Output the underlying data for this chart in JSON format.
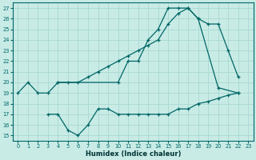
{
  "xlabel": "Humidex (Indice chaleur)",
  "bg_color": "#c8ebe6",
  "grid_color": "#a8d8d0",
  "line_color": "#006666",
  "xlim": [
    -0.5,
    23.5
  ],
  "ylim": [
    14.5,
    27.5
  ],
  "yticks": [
    15,
    16,
    17,
    18,
    19,
    20,
    21,
    22,
    23,
    24,
    25,
    26,
    27
  ],
  "xticks": [
    0,
    1,
    2,
    3,
    4,
    5,
    6,
    7,
    8,
    9,
    10,
    11,
    12,
    13,
    14,
    15,
    16,
    17,
    18,
    19,
    20,
    21,
    22,
    23
  ],
  "line1_x": [
    0,
    1,
    2,
    3,
    4,
    10,
    11,
    12,
    13,
    14,
    15,
    16,
    17,
    18,
    20,
    22
  ],
  "line1_y": [
    19,
    20,
    19,
    19,
    20,
    20,
    22,
    22,
    24,
    25,
    27,
    27,
    27,
    26,
    19.5,
    19
  ],
  "line2_x": [
    4,
    5,
    6,
    7,
    8,
    9,
    10,
    11,
    12,
    13,
    14,
    15,
    16,
    17,
    18,
    19,
    20,
    21,
    22
  ],
  "line2_y": [
    20,
    20,
    20,
    20.5,
    21,
    21.5,
    22,
    22.5,
    23,
    23.5,
    24,
    25.5,
    26.5,
    27,
    26,
    25.5,
    25.5,
    23,
    20.5
  ],
  "line3_x": [
    3,
    4,
    5,
    6,
    7,
    8,
    9,
    10,
    11,
    12,
    13,
    14,
    15,
    16,
    17,
    18,
    19,
    20,
    21,
    22
  ],
  "line3_y": [
    17,
    17,
    15.5,
    15,
    16,
    17.5,
    17.5,
    17,
    17,
    17,
    17,
    17,
    17,
    17.5,
    17.5,
    18,
    18.2,
    18.5,
    18.8,
    19
  ]
}
